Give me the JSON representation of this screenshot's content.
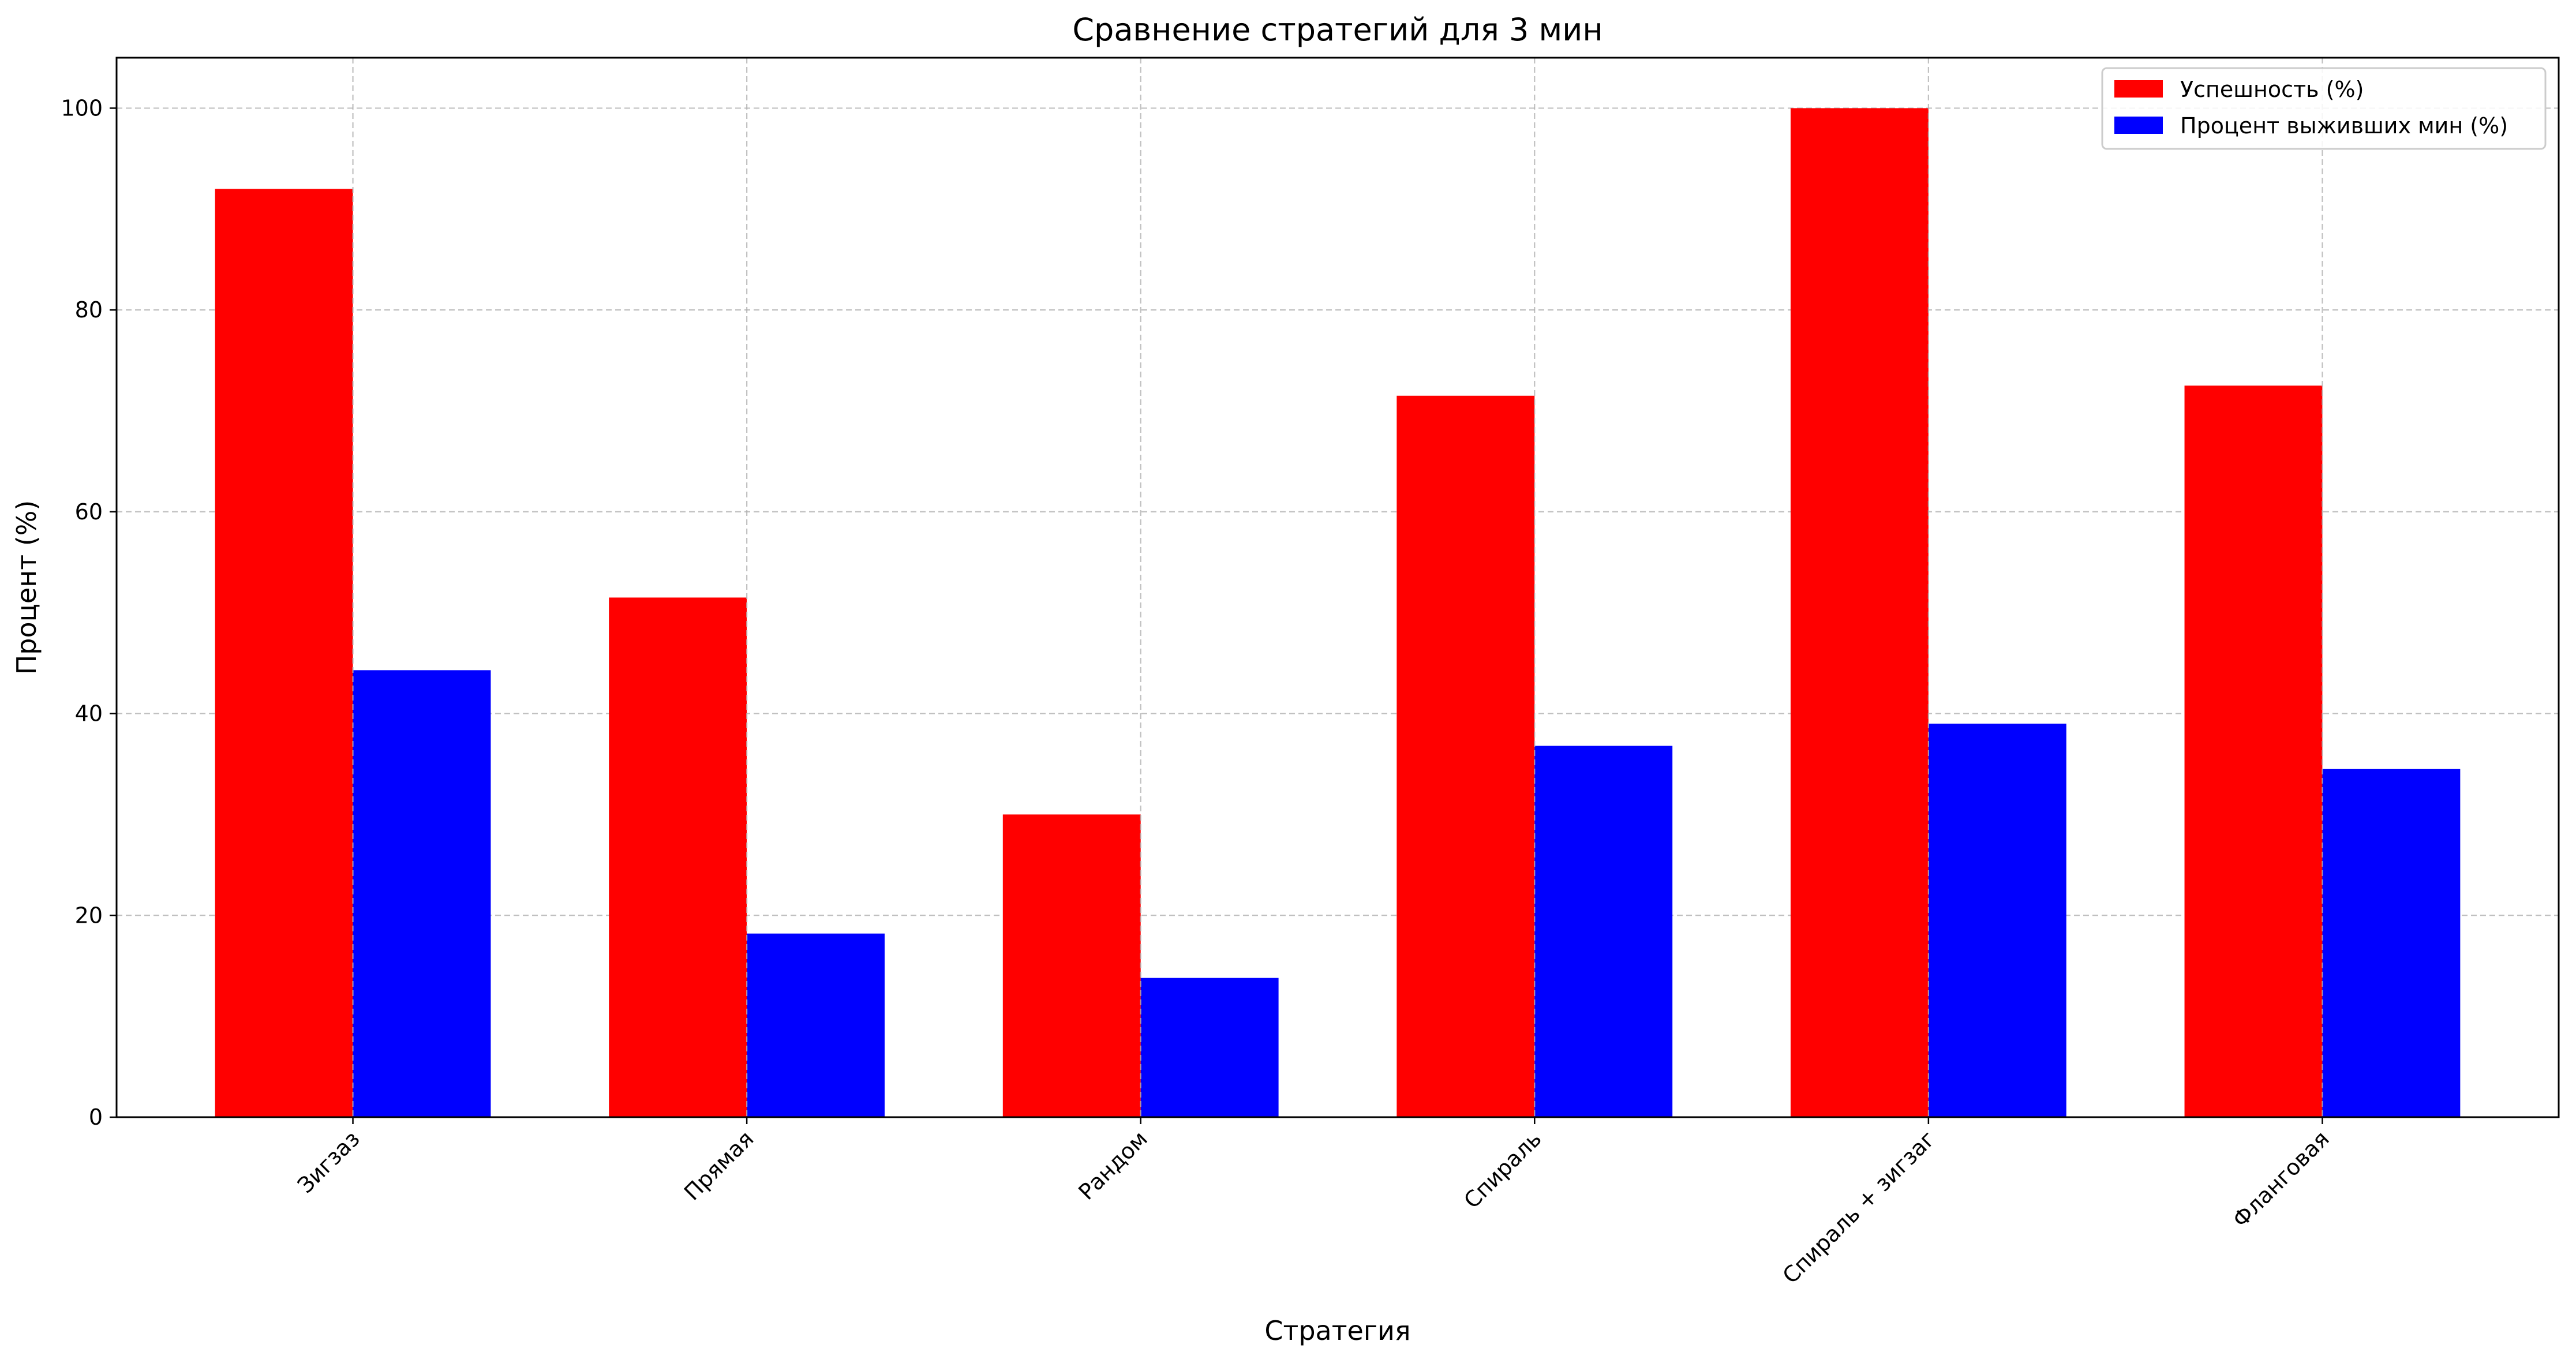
{
  "chart_data": {
    "type": "bar",
    "title": "Сравнение стратегий для 3 мин",
    "xlabel": "Стратегия",
    "ylabel": "Процент (%)",
    "categories": [
      "Зигзаз",
      "Прямая",
      "Рандом",
      "Спираль",
      "Спираль + зигзаг",
      "Фланговая"
    ],
    "series": [
      {
        "name": "Успешность (%)",
        "color": "#ff0000",
        "values": [
          92,
          51.5,
          30,
          71.5,
          100,
          72.5
        ]
      },
      {
        "name": "Процент выживших мин (%)",
        "color": "#0000ff",
        "values": [
          44.3,
          18.2,
          13.8,
          36.8,
          39,
          34.5
        ]
      }
    ],
    "ylim": [
      0,
      105
    ],
    "yticks": [
      "0",
      "20",
      "40",
      "60",
      "80",
      "100"
    ],
    "grid": true,
    "legend_position": "top-right",
    "xtick_rotation": "45"
  }
}
